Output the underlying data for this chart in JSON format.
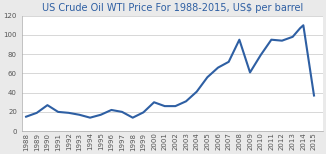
{
  "title": "US Crude Oil WTI Price For 1988-2015, US$ per barrel",
  "years": [
    1988,
    1989,
    1990,
    1991,
    1992,
    1993,
    1994,
    1995,
    1996,
    1997,
    1998,
    1999,
    2000,
    2001,
    2002,
    2003,
    2004,
    2005,
    2006,
    2007,
    2008,
    2009,
    2010,
    2011,
    2012,
    2013,
    2013.7,
    2014,
    2015
  ],
  "prices": [
    15,
    19,
    27,
    20,
    19,
    17,
    14,
    17,
    22,
    20,
    14,
    19.5,
    30,
    26,
    26,
    31,
    41,
    56,
    66,
    72,
    95,
    61,
    79,
    95,
    94,
    98,
    107,
    110,
    37
  ],
  "line_color": "#2e5fa3",
  "line_width": 1.5,
  "title_color": "#2e5fa3",
  "title_fontsize": 7.0,
  "bg_color": "#eaeaea",
  "plot_bg_color": "#ffffff",
  "grid_color": "#c8c8c8",
  "ylim": [
    0,
    120
  ],
  "yticks": [
    0,
    20,
    40,
    60,
    80,
    100,
    120
  ],
  "tick_fontsize": 5.0,
  "tick_color": "#555555",
  "xlim_min": 1987.6,
  "xlim_max": 2015.8
}
